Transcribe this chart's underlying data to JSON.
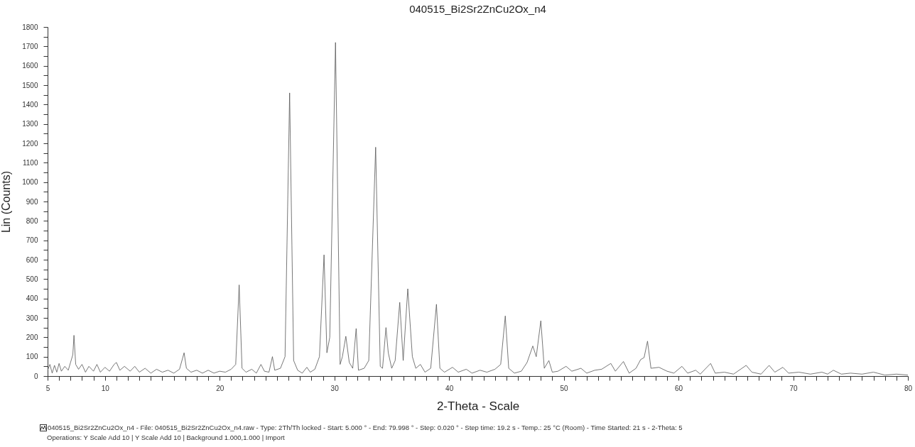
{
  "chart_data": {
    "type": "line",
    "title": "040515_Bi2Sr2ZnCu2Ox_n4",
    "xlabel": "2-Theta - Scale",
    "ylabel": "Lin (Counts)",
    "annotations": [
      "040515_Bi2Sr2ZnCu2Ox_n4 - File: 040515_Bi2Sr2ZnCu2Ox_n4.raw - Type: 2Th/Th locked - Start: 5.000 ° - End: 79.998 ° - Step: 0.020 ° - Step time: 19.2 s - Temp.: 25 °C (Room) - Time Started: 21 s - 2-Theta: 5",
      "Operations: Y Scale Add 10 | Y Scale Add 10 | Background 1.000,1.000 | Import"
    ],
    "xlim": [
      5,
      80
    ],
    "ylim": [
      0,
      1800
    ],
    "xticks": [
      5,
      {
        "value": 6,
        "label": null
      },
      {
        "value": 7,
        "label": null
      },
      {
        "value": 8,
        "label": null
      },
      {
        "value": 9,
        "label": null
      },
      10,
      {
        "value": 11,
        "label": null
      },
      {
        "value": 12,
        "label": null
      },
      {
        "value": 13,
        "label": null
      },
      {
        "value": 14,
        "label": null
      },
      {
        "value": 15,
        "label": null
      },
      {
        "value": 16,
        "label": null
      },
      {
        "value": 17,
        "label": null
      },
      {
        "value": 18,
        "label": null
      },
      {
        "value": 19,
        "label": null
      },
      20,
      {
        "value": 21,
        "label": null
      },
      {
        "value": 22,
        "label": null
      },
      {
        "value": 23,
        "label": null
      },
      {
        "value": 24,
        "label": null
      },
      {
        "value": 25,
        "label": null
      },
      {
        "value": 26,
        "label": null
      },
      {
        "value": 27,
        "label": null
      },
      {
        "value": 28,
        "label": null
      },
      {
        "value": 29,
        "label": null
      },
      30,
      {
        "value": 31,
        "label": null
      },
      {
        "value": 32,
        "label": null
      },
      {
        "value": 33,
        "label": null
      },
      {
        "value": 34,
        "label": null
      },
      {
        "value": 35,
        "label": null
      },
      {
        "value": 36,
        "label": null
      },
      {
        "value": 37,
        "label": null
      },
      {
        "value": 38,
        "label": null
      },
      {
        "value": 39,
        "label": null
      },
      40,
      {
        "value": 41,
        "label": null
      },
      {
        "value": 42,
        "label": null
      },
      {
        "value": 43,
        "label": null
      },
      {
        "value": 44,
        "label": null
      },
      {
        "value": 45,
        "label": null
      },
      {
        "value": 46,
        "label": null
      },
      {
        "value": 47,
        "label": null
      },
      {
        "value": 48,
        "label": null
      },
      {
        "value": 49,
        "label": null
      },
      50,
      {
        "value": 51,
        "label": null
      },
      {
        "value": 52,
        "label": null
      },
      {
        "value": 53,
        "label": null
      },
      {
        "value": 54,
        "label": null
      },
      {
        "value": 55,
        "label": null
      },
      {
        "value": 56,
        "label": null
      },
      {
        "value": 57,
        "label": null
      },
      {
        "value": 58,
        "label": null
      },
      {
        "value": 59,
        "label": null
      },
      60,
      {
        "value": 61,
        "label": null
      },
      {
        "value": 62,
        "label": null
      },
      {
        "value": 63,
        "label": null
      },
      {
        "value": 64,
        "label": null
      },
      {
        "value": 65,
        "label": null
      },
      {
        "value": 66,
        "label": null
      },
      {
        "value": 67,
        "label": null
      },
      {
        "value": 68,
        "label": null
      },
      {
        "value": 69,
        "label": null
      },
      70,
      {
        "value": 71,
        "label": null
      },
      {
        "value": 72,
        "label": null
      },
      {
        "value": 73,
        "label": null
      },
      {
        "value": 74,
        "label": null
      },
      {
        "value": 75,
        "label": null
      },
      {
        "value": 76,
        "label": null
      },
      {
        "value": 77,
        "label": null
      },
      {
        "value": 78,
        "label": null
      },
      {
        "value": 79,
        "label": null
      },
      80
    ],
    "yticks": [
      0,
      {
        "value": 50,
        "label": null
      },
      100,
      {
        "value": 150,
        "label": null
      },
      200,
      {
        "value": 250,
        "label": null
      },
      300,
      {
        "value": 350,
        "label": null
      },
      400,
      {
        "value": 450,
        "label": null
      },
      500,
      {
        "value": 550,
        "label": null
      },
      600,
      {
        "value": 650,
        "label": null
      },
      700,
      {
        "value": 750,
        "label": null
      },
      800,
      {
        "value": 850,
        "label": null
      },
      900,
      {
        "value": 950,
        "label": null
      },
      1000,
      {
        "value": 1050,
        "label": null
      },
      1100,
      {
        "value": 1150,
        "label": null
      },
      1200,
      {
        "value": 1250,
        "label": null
      },
      1300,
      {
        "value": 1350,
        "label": null
      },
      1400,
      {
        "value": 1450,
        "label": null
      },
      1500,
      {
        "value": 1550,
        "label": null
      },
      1600,
      {
        "value": 1650,
        "label": null
      },
      1700,
      {
        "value": 1750,
        "label": null
      },
      1800
    ],
    "series": [
      {
        "color": "#555555",
        "x": [
          5.0,
          5.2,
          5.4,
          5.6,
          5.8,
          6.0,
          6.2,
          6.5,
          6.8,
          7.0,
          7.2,
          7.3,
          7.45,
          7.7,
          8.0,
          8.3,
          8.6,
          9.0,
          9.3,
          9.6,
          10.0,
          10.4,
          10.8,
          11.0,
          11.3,
          11.7,
          12.2,
          12.6,
          13.0,
          13.5,
          14.0,
          14.5,
          15.0,
          15.5,
          16.0,
          16.5,
          16.9,
          17.1,
          17.5,
          18.0,
          18.5,
          19.0,
          19.5,
          20.0,
          20.5,
          21.0,
          21.4,
          21.7,
          21.95,
          22.3,
          22.8,
          23.2,
          23.6,
          23.9,
          24.3,
          24.6,
          24.8,
          25.3,
          25.7,
          26.1,
          26.45,
          26.8,
          27.2,
          27.6,
          27.9,
          28.3,
          28.7,
          29.1,
          29.35,
          29.6,
          30.1,
          30.5,
          30.7,
          31.0,
          31.3,
          31.6,
          31.9,
          32.1,
          32.6,
          33.0,
          33.6,
          34.0,
          34.2,
          34.5,
          34.7,
          35.0,
          35.3,
          35.7,
          36.0,
          36.4,
          36.8,
          37.1,
          37.5,
          37.9,
          38.4,
          38.9,
          39.2,
          39.6,
          40.3,
          40.8,
          41.5,
          42.0,
          42.7,
          43.3,
          44.0,
          44.5,
          44.9,
          45.2,
          45.7,
          46.3,
          46.8,
          47.3,
          47.6,
          48.0,
          48.3,
          48.7,
          49.0,
          49.5,
          50.2,
          50.7,
          51.5,
          52.0,
          52.7,
          53.3,
          54.1,
          54.5,
          55.2,
          55.7,
          56.3,
          56.7,
          57.0,
          57.3,
          57.6,
          58.3,
          59.0,
          59.6,
          60.3,
          60.8,
          61.5,
          61.9,
          62.8,
          63.2,
          64.0,
          64.8,
          65.9,
          66.4,
          67.2,
          67.9,
          68.4,
          69.1,
          69.6,
          70.5,
          71.5,
          72.5,
          73.0,
          73.5,
          74.2,
          75.0,
          76.0,
          77.0,
          78.0,
          79.0,
          80.0
        ],
        "values": [
          30,
          60,
          15,
          55,
          20,
          65,
          25,
          50,
          30,
          70,
          110,
          210,
          60,
          35,
          60,
          20,
          50,
          25,
          60,
          20,
          45,
          25,
          60,
          70,
          30,
          50,
          25,
          50,
          20,
          40,
          15,
          35,
          20,
          30,
          15,
          35,
          120,
          40,
          20,
          30,
          15,
          30,
          15,
          25,
          20,
          35,
          60,
          470,
          40,
          20,
          35,
          15,
          60,
          25,
          20,
          100,
          30,
          40,
          100,
          1460,
          80,
          30,
          15,
          45,
          20,
          35,
          100,
          625,
          120,
          200,
          1720,
          60,
          100,
          205,
          70,
          40,
          245,
          30,
          40,
          80,
          1180,
          50,
          40,
          250,
          120,
          40,
          80,
          380,
          80,
          450,
          100,
          40,
          60,
          20,
          40,
          370,
          40,
          20,
          45,
          20,
          35,
          15,
          30,
          20,
          35,
          60,
          310,
          40,
          15,
          25,
          70,
          155,
          100,
          285,
          40,
          80,
          20,
          25,
          50,
          25,
          40,
          15,
          30,
          35,
          65,
          25,
          75,
          15,
          40,
          85,
          95,
          180,
          40,
          45,
          25,
          15,
          50,
          15,
          30,
          10,
          65,
          15,
          20,
          10,
          55,
          20,
          10,
          55,
          20,
          45,
          15,
          20,
          10,
          20,
          10,
          30,
          10,
          15,
          10,
          20,
          5,
          10,
          5
        ]
      }
    ]
  }
}
